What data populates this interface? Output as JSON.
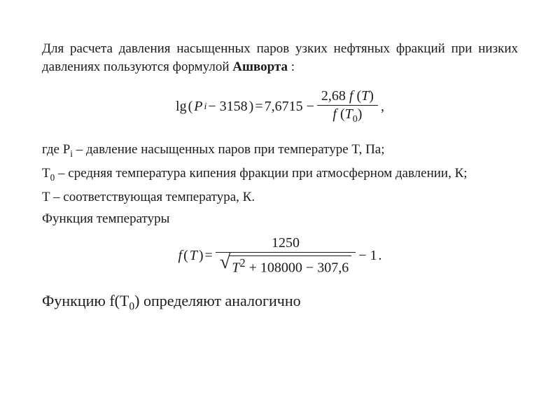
{
  "colors": {
    "background": "#ffffff",
    "text": "#1a1a1a",
    "rule": "#1a1a1a"
  },
  "fonts": {
    "body_family": "Times New Roman",
    "body_size_pt": 14,
    "concl_size_pt": 16
  },
  "intro": {
    "text_before_bold": "Для расчета давления насыщенных паров узких нефтяных фракций при низких давлениях пользуются формулой ",
    "bold_name": "Ашворта",
    "text_after_bold": " :"
  },
  "formula1": {
    "lhs_lg": "lg",
    "lhs_open": "(",
    "lhs_var": "P",
    "lhs_var_sub": "i",
    "lhs_minus_const": " − 3158",
    "lhs_close": ")",
    "eq": " = ",
    "rhs_const": "7,6715 − ",
    "frac_num_coeff": "2,68",
    "frac_num_f": " f",
    "frac_num_arg_open": "(",
    "frac_num_arg_var": "T",
    "frac_num_arg_close": ")",
    "frac_den_f": "f",
    "frac_den_arg_open": "(",
    "frac_den_arg_var": "T",
    "frac_den_arg_sub": "0",
    "frac_den_arg_close": ")",
    "tail": " ,"
  },
  "where": {
    "l1_before": "где P",
    "l1_sub": "i",
    "l1_after": " – давление насыщенных паров при температуре T, Па;",
    "l2_before": "T",
    "l2_sub": "0",
    "l2_after": " – средняя температура кипения фракции при атмосферном давлении, К;",
    "l3": "T – соответствующая температура, К.",
    "l4": "Функция температуры"
  },
  "formula2": {
    "lhs_f": "f",
    "lhs_open": "(",
    "lhs_var": "T",
    "lhs_close": ")",
    "eq": " = ",
    "frac_num": "1250",
    "frac_den_inside_sqrt": "T",
    "frac_den_sqrt_rest_sup": "2",
    "frac_den_sqrt_rest": " + 108000 − 307,6",
    "tail_minus_one": " − 1",
    "tail_period": "."
  },
  "conclusion": {
    "before": "Функцию f(T",
    "sub": "0",
    "after": ") определяют аналогично"
  }
}
